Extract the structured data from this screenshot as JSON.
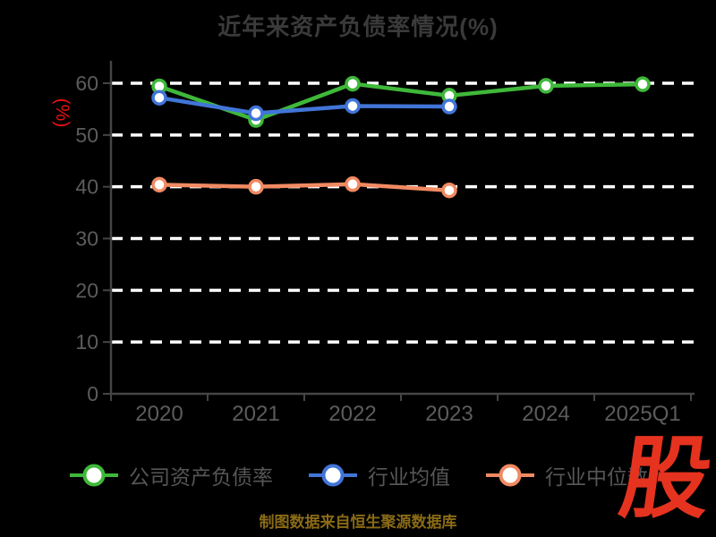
{
  "page": {
    "background": "#000000"
  },
  "header": {
    "title": "近年来资产负债率情况(%)",
    "title_color": "#3a3a3a"
  },
  "chart_data": {
    "type": "line",
    "title": "近年来资产负债率情况(%)",
    "categories": [
      "2020",
      "2021",
      "2022",
      "2023",
      "2024",
      "2025Q1"
    ],
    "series": [
      {
        "name": "公司资产负债率",
        "color": "#3fb83a",
        "values": [
          59.4,
          52.9,
          59.9,
          57.6,
          59.5,
          59.8
        ]
      },
      {
        "name": "行业均值",
        "color": "#4175d8",
        "values": [
          57.2,
          54.2,
          55.6,
          55.5,
          null,
          null
        ]
      },
      {
        "name": "行业中位数",
        "color": "#f08a62",
        "values": [
          40.4,
          40.0,
          40.5,
          39.3,
          null,
          null
        ]
      }
    ],
    "xlabel": "",
    "ylabel": "(%)",
    "ylabel_color": "#ee1111",
    "ylim": [
      0,
      60
    ],
    "yticks": [
      0,
      10,
      20,
      30,
      40,
      50,
      60
    ],
    "grid": {
      "horizontal": true,
      "style": "dashed",
      "color": "#ffffff"
    },
    "axis_color": "#454545",
    "tick_label_color": "#5c5c5c",
    "marker": "circle-white-fill",
    "legend_position": "bottom"
  },
  "legend": {
    "label_color": "#565656"
  },
  "footer": {
    "source_text": "制图数据来自恒生聚源数据库",
    "color": "#8a6b15"
  },
  "watermark": {
    "text": "股",
    "color": "#e6331f"
  }
}
